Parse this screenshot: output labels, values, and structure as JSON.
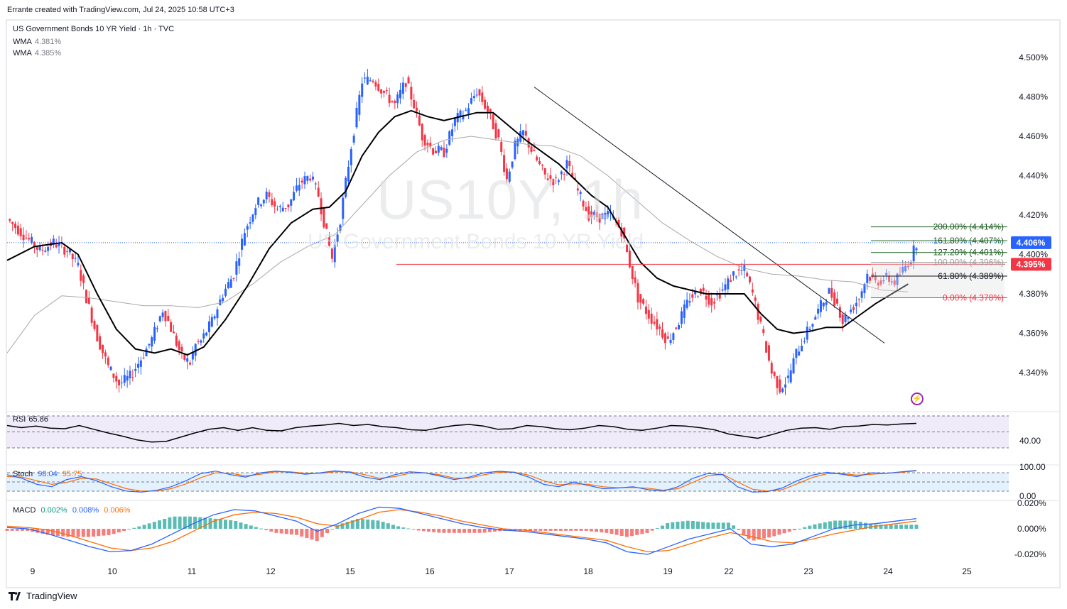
{
  "header": {
    "attribution": "Errante created with TradingView.com, Jul 24, 2025 10:58 UTC+3",
    "symbol_title": "US Government Bonds 10 YR Yield · 1h · TVC"
  },
  "legend": [
    {
      "name": "WMA",
      "value": "4.381%"
    },
    {
      "name": "WMA",
      "value": "4.385%"
    }
  ],
  "watermark": {
    "symbol": "US10Y, 1h",
    "description": "US Government Bonds 10 YR Yield"
  },
  "footer": {
    "brand": "TradingView"
  },
  "colors": {
    "up": "#2962ff",
    "down": "#f23645",
    "wma_fast": "#000000",
    "wma_slow": "#a8a8a8",
    "rsi": "#000000",
    "stoch_k": "#2962ff",
    "stoch_d": "#ff6d00",
    "macd": "#2962ff",
    "signal": "#ff6d00",
    "level": "#f23645"
  },
  "chart_data": [
    {
      "type": "candlestick",
      "title": "US Government Bonds 10 YR Yield · 1h · TVC",
      "ylim": [
        4.32,
        4.51
      ],
      "y_ticks": [
        "4.500%",
        "4.480%",
        "4.460%",
        "4.440%",
        "4.420%",
        "4.400%",
        "4.380%",
        "4.360%",
        "4.340%"
      ],
      "x_ticks": [
        "9",
        "10",
        "11",
        "12",
        "15",
        "16",
        "17",
        "18",
        "19",
        "22",
        "23",
        "24",
        "25"
      ],
      "close_path": [
        [
          0,
          4.418
        ],
        [
          6,
          4.41
        ],
        [
          12,
          4.402
        ],
        [
          17,
          4.406
        ],
        [
          22,
          4.402
        ],
        [
          26,
          4.394
        ],
        [
          29,
          4.378
        ],
        [
          33,
          4.358
        ],
        [
          37,
          4.343
        ],
        [
          41,
          4.334
        ],
        [
          45,
          4.338
        ],
        [
          49,
          4.347
        ],
        [
          53,
          4.357
        ],
        [
          57,
          4.372
        ],
        [
          59,
          4.366
        ],
        [
          62,
          4.355
        ],
        [
          64,
          4.348
        ],
        [
          67,
          4.345
        ],
        [
          69,
          4.354
        ],
        [
          71,
          4.356
        ],
        [
          75,
          4.366
        ],
        [
          79,
          4.38
        ],
        [
          83,
          4.39
        ],
        [
          87,
          4.412
        ],
        [
          91,
          4.425
        ],
        [
          95,
          4.43
        ],
        [
          99,
          4.423
        ],
        [
          103,
          4.425
        ],
        [
          107,
          4.436
        ],
        [
          111,
          4.44
        ],
        [
          114,
          4.43
        ],
        [
          117,
          4.41
        ],
        [
          119,
          4.398
        ],
        [
          122,
          4.418
        ],
        [
          126,
          4.455
        ],
        [
          130,
          4.488
        ],
        [
          134,
          4.489
        ],
        [
          138,
          4.482
        ],
        [
          142,
          4.476
        ],
        [
          146,
          4.488
        ],
        [
          149,
          4.476
        ],
        [
          152,
          4.46
        ],
        [
          156,
          4.453
        ],
        [
          160,
          4.452
        ],
        [
          164,
          4.468
        ],
        [
          168,
          4.473
        ],
        [
          172,
          4.483
        ],
        [
          176,
          4.473
        ],
        [
          180,
          4.458
        ],
        [
          183,
          4.438
        ],
        [
          186,
          4.455
        ],
        [
          189,
          4.462
        ],
        [
          193,
          4.45
        ],
        [
          197,
          4.44
        ],
        [
          201,
          4.437
        ],
        [
          205,
          4.446
        ],
        [
          209,
          4.432
        ],
        [
          213,
          4.42
        ],
        [
          217,
          4.419
        ],
        [
          221,
          4.42
        ],
        [
          225,
          4.412
        ],
        [
          228,
          4.395
        ],
        [
          231,
          4.378
        ],
        [
          235,
          4.369
        ],
        [
          239,
          4.362
        ],
        [
          242,
          4.356
        ],
        [
          246,
          4.366
        ],
        [
          250,
          4.378
        ],
        [
          254,
          4.382
        ],
        [
          258,
          4.376
        ],
        [
          262,
          4.382
        ],
        [
          266,
          4.39
        ],
        [
          270,
          4.392
        ],
        [
          273,
          4.38
        ],
        [
          277,
          4.358
        ],
        [
          280,
          4.34
        ],
        [
          283,
          4.332
        ],
        [
          286,
          4.337
        ],
        [
          289,
          4.35
        ],
        [
          292,
          4.358
        ],
        [
          295,
          4.366
        ],
        [
          298,
          4.374
        ],
        [
          301,
          4.381
        ],
        [
          304,
          4.375
        ],
        [
          306,
          4.366
        ],
        [
          309,
          4.372
        ],
        [
          312,
          4.378
        ],
        [
          315,
          4.39
        ],
        [
          318,
          4.386
        ],
        [
          322,
          4.388
        ],
        [
          325,
          4.386
        ],
        [
          328,
          4.392
        ],
        [
          331,
          4.398
        ],
        [
          333,
          4.406
        ]
      ],
      "wma_fast": [
        [
          0,
          4.397
        ],
        [
          10,
          4.404
        ],
        [
          20,
          4.406
        ],
        [
          26,
          4.4
        ],
        [
          33,
          4.38
        ],
        [
          40,
          4.362
        ],
        [
          47,
          4.352
        ],
        [
          54,
          4.35
        ],
        [
          60,
          4.352
        ],
        [
          66,
          4.349
        ],
        [
          72,
          4.353
        ],
        [
          80,
          4.367
        ],
        [
          88,
          4.384
        ],
        [
          96,
          4.403
        ],
        [
          104,
          4.416
        ],
        [
          112,
          4.423
        ],
        [
          118,
          4.424
        ],
        [
          124,
          4.432
        ],
        [
          130,
          4.45
        ],
        [
          136,
          4.462
        ],
        [
          142,
          4.47
        ],
        [
          148,
          4.473
        ],
        [
          154,
          4.47
        ],
        [
          160,
          4.468
        ],
        [
          166,
          4.47
        ],
        [
          172,
          4.472
        ],
        [
          178,
          4.472
        ],
        [
          184,
          4.465
        ],
        [
          190,
          4.458
        ],
        [
          196,
          4.452
        ],
        [
          202,
          4.446
        ],
        [
          208,
          4.438
        ],
        [
          214,
          4.43
        ],
        [
          220,
          4.424
        ],
        [
          226,
          4.41
        ],
        [
          232,
          4.396
        ],
        [
          238,
          4.388
        ],
        [
          244,
          4.384
        ],
        [
          250,
          4.382
        ],
        [
          256,
          4.38
        ],
        [
          262,
          4.38
        ],
        [
          266,
          4.38
        ],
        [
          270,
          4.38
        ],
        [
          276,
          4.37
        ],
        [
          282,
          4.362
        ],
        [
          288,
          4.36
        ],
        [
          294,
          4.361
        ],
        [
          300,
          4.363
        ],
        [
          306,
          4.363
        ],
        [
          312,
          4.369
        ],
        [
          318,
          4.375
        ],
        [
          324,
          4.38
        ],
        [
          330,
          4.385
        ]
      ],
      "wma_slow": [
        [
          0,
          4.35
        ],
        [
          10,
          4.369
        ],
        [
          20,
          4.379
        ],
        [
          30,
          4.378
        ],
        [
          40,
          4.376
        ],
        [
          50,
          4.374
        ],
        [
          60,
          4.374
        ],
        [
          70,
          4.373
        ],
        [
          80,
          4.376
        ],
        [
          90,
          4.385
        ],
        [
          100,
          4.396
        ],
        [
          110,
          4.404
        ],
        [
          120,
          4.41
        ],
        [
          130,
          4.425
        ],
        [
          140,
          4.44
        ],
        [
          150,
          4.452
        ],
        [
          160,
          4.458
        ],
        [
          170,
          4.46
        ],
        [
          180,
          4.458
        ],
        [
          190,
          4.456
        ],
        [
          200,
          4.455
        ],
        [
          210,
          4.45
        ],
        [
          220,
          4.44
        ],
        [
          230,
          4.428
        ],
        [
          240,
          4.416
        ],
        [
          250,
          4.407
        ],
        [
          260,
          4.399
        ],
        [
          270,
          4.393
        ],
        [
          280,
          4.39
        ],
        [
          290,
          4.389
        ],
        [
          300,
          4.387
        ],
        [
          310,
          4.386
        ],
        [
          320,
          4.382
        ],
        [
          330,
          4.381
        ]
      ],
      "price_label": "4.406%",
      "level_label": "4.395%",
      "level_value": 4.395,
      "fibonacci": [
        {
          "label": "200.00% (4.414%)",
          "value": 4.414,
          "color": "#1b5e20"
        },
        {
          "label": "161.80% (4.407%)",
          "value": 4.407,
          "color": "#1b5e20"
        },
        {
          "label": "127.20% (4.401%)",
          "value": 4.401,
          "color": "#1b5e20"
        },
        {
          "label": "100.00% (4.396%)",
          "value": 4.396,
          "color": "#9e9e9e"
        },
        {
          "label": "61.80% (4.389%)",
          "value": 4.389,
          "color": "#131722"
        },
        {
          "label": "0.00% (4.378%)",
          "value": 4.378,
          "color": "#f23645"
        }
      ]
    },
    {
      "type": "line",
      "title": "RSI",
      "value_label": "65.86",
      "ylim": [
        20,
        80
      ],
      "tick_label": "40.00",
      "values": [
        62,
        58,
        61,
        57,
        56,
        62,
        55,
        48,
        42,
        35,
        31,
        32,
        40,
        48,
        55,
        58,
        53,
        58,
        53,
        52,
        58,
        61,
        63,
        66,
        62,
        64,
        60,
        58,
        54,
        53,
        58,
        62,
        64,
        61,
        55,
        56,
        62,
        60,
        56,
        54,
        57,
        62,
        60,
        55,
        53,
        57,
        62,
        61,
        58,
        54,
        46,
        42,
        38,
        45,
        53,
        57,
        58,
        55,
        60,
        61,
        64,
        63,
        65,
        66
      ]
    },
    {
      "type": "line",
      "title": "Stoch",
      "k_label": "98.04",
      "d_label": "95.75",
      "ylim": [
        0,
        100
      ],
      "tick_labels": [
        "100.00",
        "0.00"
      ],
      "k_values": [
        80,
        65,
        40,
        30,
        60,
        72,
        55,
        30,
        12,
        8,
        15,
        30,
        55,
        85,
        95,
        80,
        70,
        88,
        95,
        90,
        82,
        88,
        96,
        90,
        70,
        60,
        80,
        92,
        88,
        75,
        60,
        70,
        88,
        94,
        90,
        70,
        40,
        30,
        50,
        35,
        22,
        25,
        30,
        18,
        12,
        30,
        65,
        85,
        80,
        30,
        8,
        10,
        25,
        55,
        78,
        90,
        82,
        72,
        88,
        86,
        92,
        98
      ],
      "d_values": [
        72,
        70,
        55,
        40,
        48,
        65,
        62,
        42,
        22,
        12,
        12,
        22,
        42,
        68,
        88,
        86,
        75,
        82,
        92,
        92,
        86,
        86,
        92,
        92,
        80,
        65,
        72,
        86,
        88,
        80,
        66,
        66,
        80,
        90,
        91,
        78,
        55,
        38,
        42,
        40,
        30,
        26,
        27,
        24,
        16,
        22,
        48,
        75,
        82,
        50,
        20,
        12,
        18,
        42,
        68,
        84,
        85,
        78,
        82,
        86,
        90,
        95.75
      ]
    },
    {
      "type": "histogram+line",
      "title": "MACD",
      "labels": [
        "0.002%",
        "0.008%",
        "0.006%"
      ],
      "ylim": [
        -0.024,
        0.024
      ],
      "tick_labels": [
        "0.020%",
        "0.000%",
        "-0.020%"
      ],
      "macd_values": [
        0.001,
        0.0,
        -0.004,
        -0.009,
        -0.014,
        -0.018,
        -0.017,
        -0.012,
        -0.004,
        0.004,
        0.011,
        0.015,
        0.014,
        0.01,
        0.006,
        -0.002,
        0.004,
        0.012,
        0.017,
        0.016,
        0.012,
        0.008,
        0.004,
        0.001,
        -0.001,
        -0.002,
        -0.004,
        -0.006,
        -0.008,
        -0.011,
        -0.018,
        -0.02,
        -0.014,
        -0.008,
        -0.004,
        0.0,
        -0.012,
        -0.014,
        -0.012,
        -0.006,
        0.0,
        0.003,
        0.004,
        0.006,
        0.008
      ],
      "signal_values": [
        0.002,
        0.001,
        -0.001,
        -0.005,
        -0.01,
        -0.015,
        -0.017,
        -0.015,
        -0.01,
        -0.002,
        0.006,
        0.011,
        0.013,
        0.012,
        0.009,
        0.004,
        0.002,
        0.007,
        0.013,
        0.015,
        0.013,
        0.01,
        0.006,
        0.003,
        0.0,
        -0.001,
        -0.003,
        -0.005,
        -0.007,
        -0.009,
        -0.014,
        -0.018,
        -0.017,
        -0.012,
        -0.007,
        -0.003,
        -0.006,
        -0.01,
        -0.011,
        -0.008,
        -0.004,
        -0.001,
        0.002,
        0.004,
        0.006
      ]
    }
  ]
}
